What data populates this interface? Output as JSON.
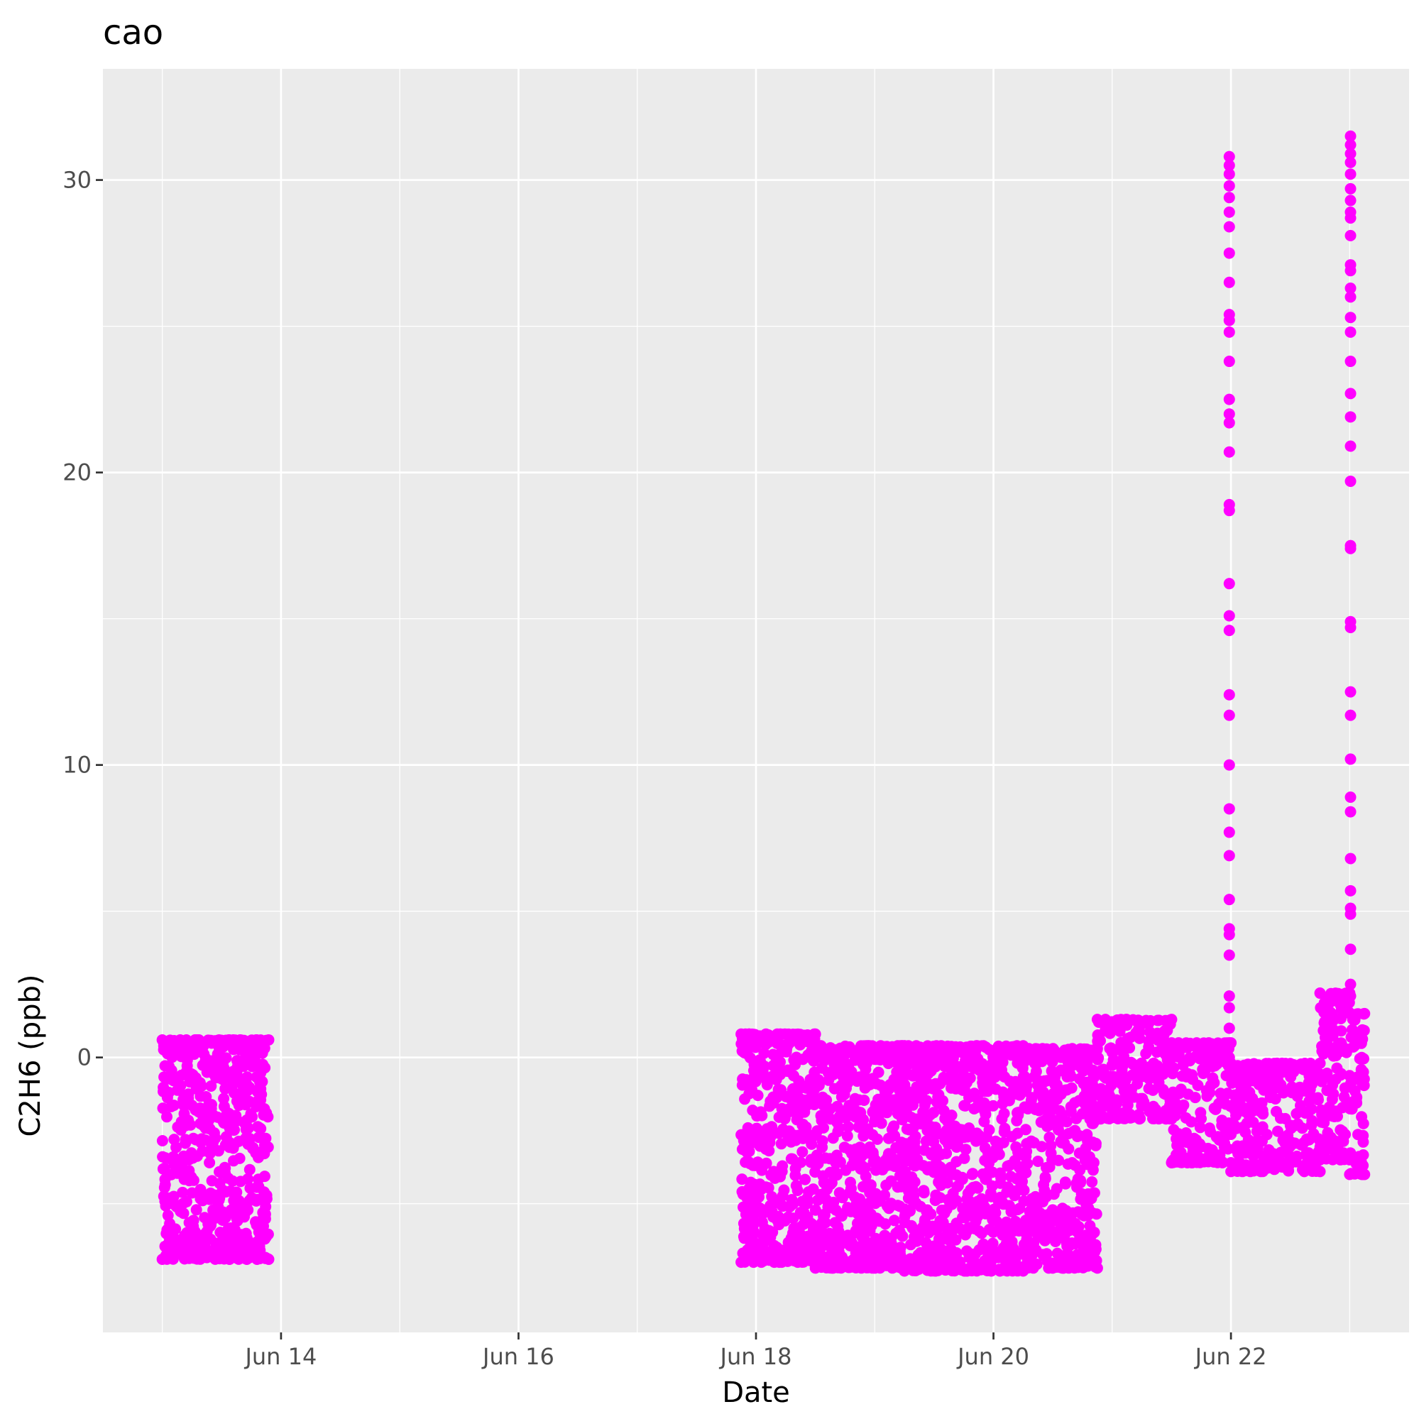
{
  "chart_data": {
    "type": "scatter",
    "title": "cao",
    "xlabel": "Date",
    "ylabel": "C2H6 (ppb)",
    "x_axis": {
      "type": "date",
      "min": "2024-06-12T12:00",
      "max": "2024-06-23T12:00",
      "major_ticks": [
        "2024-06-14",
        "2024-06-16",
        "2024-06-18",
        "2024-06-20",
        "2024-06-22"
      ],
      "minor_ticks": [
        "2024-06-13",
        "2024-06-15",
        "2024-06-17",
        "2024-06-19",
        "2024-06-21",
        "2024-06-23"
      ],
      "tick_labels": [
        "Jun 14",
        "Jun 16",
        "Jun 18",
        "Jun 20",
        "Jun 22"
      ]
    },
    "y_axis": {
      "min": -9.4,
      "max": 33.8,
      "major_ticks": [
        0,
        10,
        20,
        30
      ],
      "minor_ticks": [
        -5,
        5,
        15,
        25
      ],
      "tick_labels": [
        "0",
        "10",
        "20",
        "30"
      ]
    },
    "grid": true,
    "point_color": "#ff00ff",
    "panel_background": "#ebebeb",
    "gridline_color": "#ffffff",
    "bands": [
      {
        "start": "2024-06-13T00:00",
        "end": "2024-06-13T21:30",
        "low": -6.9,
        "high": 0.6
      },
      {
        "start": "2024-06-17T21:00",
        "end": "2024-06-18T12:00",
        "low": -7.0,
        "high": 0.8
      },
      {
        "start": "2024-06-18T12:00",
        "end": "2024-06-19T06:00",
        "low": -7.2,
        "high": 0.4
      },
      {
        "start": "2024-06-19T06:00",
        "end": "2024-06-20T06:00",
        "low": -7.3,
        "high": 0.4
      },
      {
        "start": "2024-06-20T06:00",
        "end": "2024-06-20T21:00",
        "low": -7.2,
        "high": 0.3
      },
      {
        "start": "2024-06-20T21:00",
        "end": "2024-06-21T12:00",
        "low": -2.1,
        "high": 1.3
      },
      {
        "start": "2024-06-21T12:00",
        "end": "2024-06-22T00:00",
        "low": -3.6,
        "high": 0.5
      },
      {
        "start": "2024-06-22T00:00",
        "end": "2024-06-22T18:00",
        "low": -3.9,
        "high": -0.2
      },
      {
        "start": "2024-06-22T18:00",
        "end": "2024-06-23T00:00",
        "low": -3.5,
        "high": 2.2
      },
      {
        "start": "2024-06-23T00:00",
        "end": "2024-06-23T03:00",
        "low": -4.0,
        "high": 1.5
      }
    ],
    "spikes": [
      {
        "x": "2024-06-21T23:40",
        "y": [
          30.8,
          30.5,
          30.2,
          29.8,
          29.4,
          28.9,
          28.4,
          27.5,
          26.5,
          25.4,
          25.2,
          24.8,
          23.8,
          22.5,
          22.0,
          21.7,
          20.7,
          18.9,
          18.7,
          16.2,
          15.1,
          14.6,
          12.4,
          11.7,
          10.0,
          8.5,
          7.7,
          6.9,
          5.4,
          4.4,
          4.2,
          3.5,
          2.1,
          1.7,
          1.0,
          0.5,
          0.0,
          -0.3
        ]
      },
      {
        "x": "2024-06-23T00:10",
        "y": [
          31.5,
          31.2,
          30.9,
          30.6,
          30.2,
          29.7,
          29.3,
          28.9,
          28.7,
          28.1,
          27.1,
          26.9,
          26.3,
          26.0,
          25.3,
          24.8,
          23.8,
          22.7,
          21.9,
          20.9,
          19.7,
          17.5,
          17.4,
          14.9,
          14.7,
          12.5,
          11.7,
          10.2,
          8.9,
          8.4,
          6.8,
          5.7,
          5.1,
          4.9,
          3.7,
          2.5,
          2.1
        ]
      }
    ]
  }
}
